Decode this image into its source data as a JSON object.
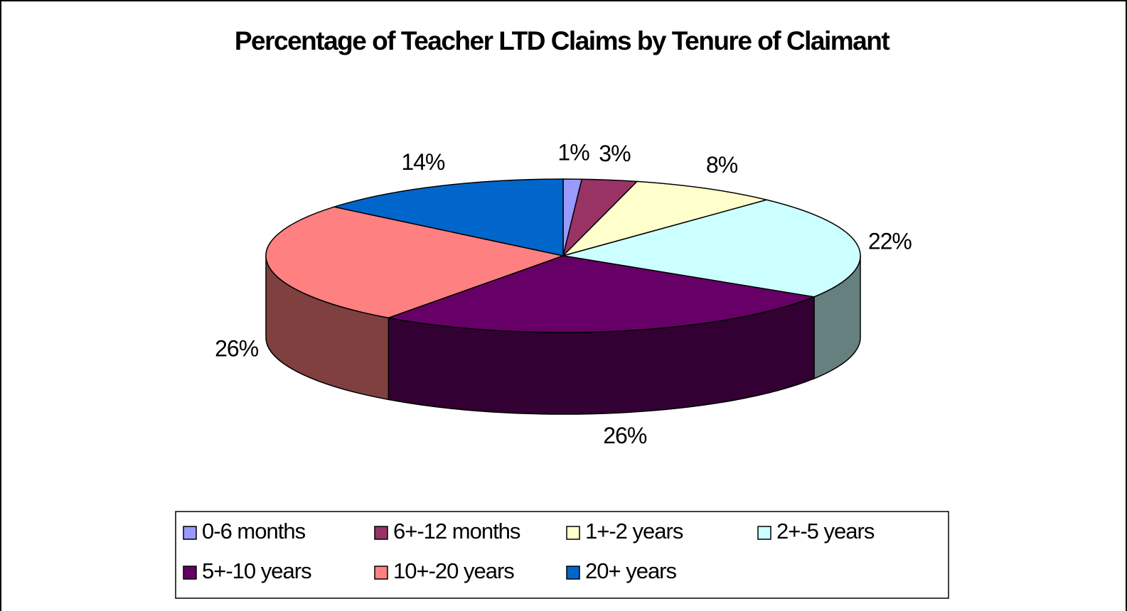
{
  "chart_data": {
    "type": "pie3d",
    "title": "Percentage of Teacher LTD Claims by Tenure of Claimant",
    "categories": [
      "0-6 months",
      "6+-12 months",
      "1+-2 years",
      "2+-5 years",
      "5+-10 years",
      "10+-20 years",
      "20+ years"
    ],
    "values": [
      1,
      3,
      8,
      22,
      26,
      26,
      14
    ],
    "value_labels": [
      "1%",
      "3%",
      "8%",
      "22%",
      "26%",
      "26%",
      "14%"
    ],
    "colors": [
      "#9999ff",
      "#993366",
      "#ffffcc",
      "#ccffff",
      "#660066",
      "#ff8080",
      "#0066cc"
    ]
  }
}
